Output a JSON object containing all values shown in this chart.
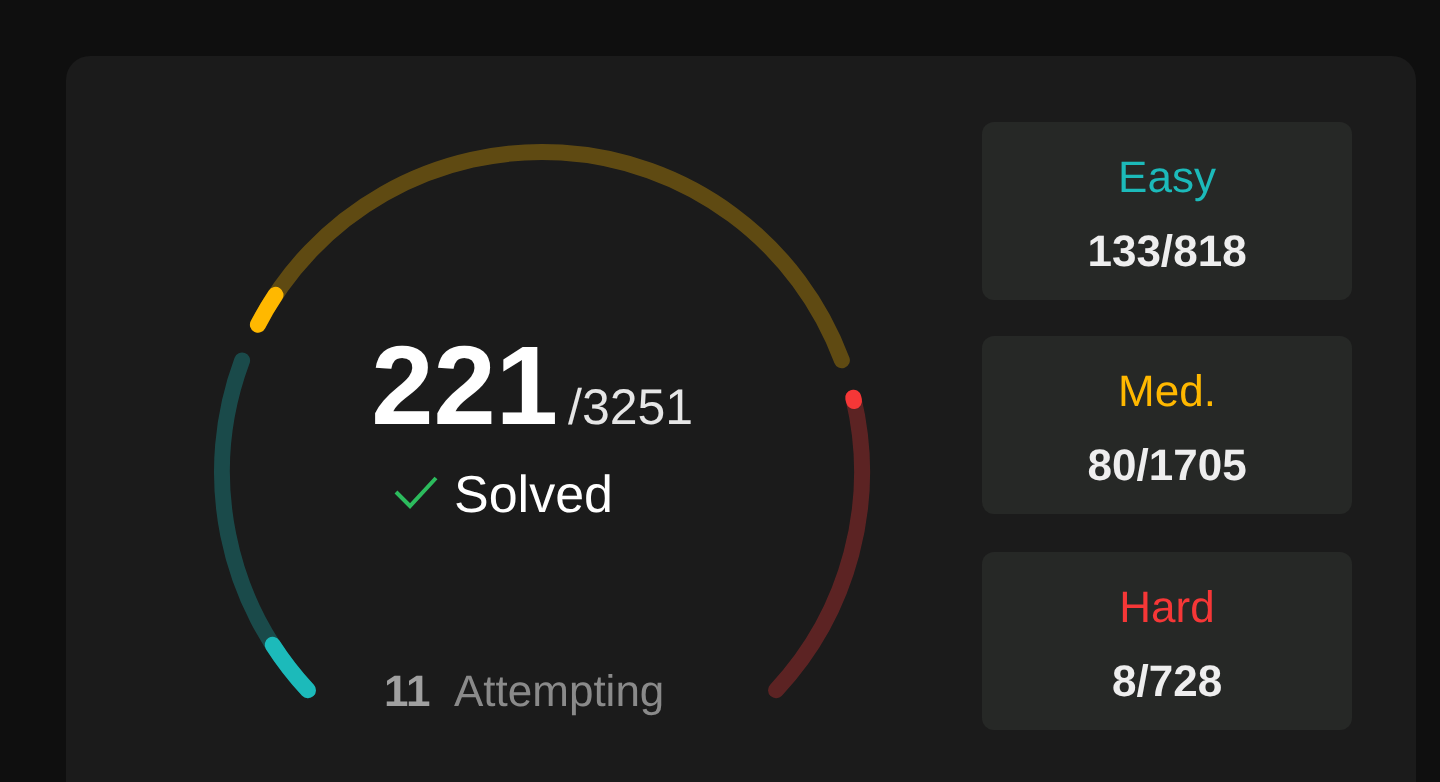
{
  "chart_data": {
    "type": "other",
    "categories": [
      "Easy",
      "Med.",
      "Hard"
    ],
    "colors": [
      "#1cbaba",
      "#ffb800",
      "#f63737"
    ],
    "series": [
      {
        "values": [
          133,
          80,
          8
        ]
      },
      {
        "values": [
          818,
          1705,
          728
        ]
      }
    ],
    "data_labels": true,
    "annotations": [
      "221",
      "/3251",
      "Solved",
      "11",
      "Attempting",
      "/"
    ]
  }
}
